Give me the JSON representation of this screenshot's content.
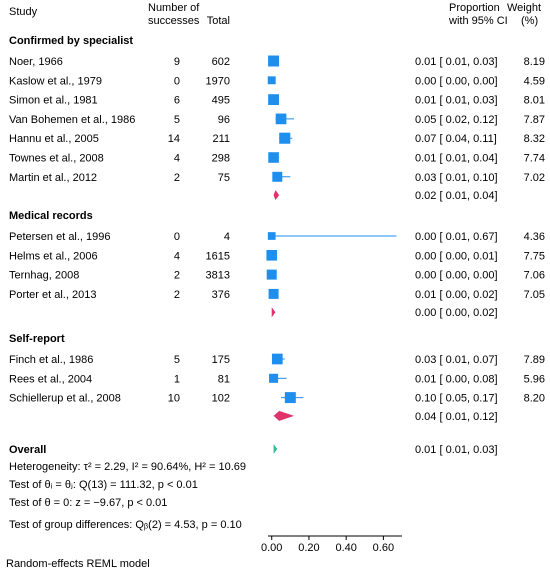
{
  "headers": {
    "study": "Study",
    "successes_line1": "Number of",
    "successes_line2": "successes",
    "total": "Total",
    "proportion_line1": "Proportion",
    "proportion_line2": "with 95% CI",
    "weight_line1": "Weight",
    "weight_line2": "(%)"
  },
  "footer": "Random-effects REML model",
  "colors": {
    "study": "#1e8fef",
    "subgroup": "#e0336b",
    "overall": "#2ec09a",
    "ci": "#1e8fef"
  },
  "groups": [
    {
      "name": "Confirmed by specialist",
      "studies": [
        {
          "study": "Noer, 1966",
          "successes": "9",
          "total": "602",
          "est": 0.01,
          "lo": 0.01,
          "hi": 0.03,
          "ci_text": "0.01 [ 0.01, 0.03]",
          "weight": "8.19"
        },
        {
          "study": "Kaslow et al., 1979",
          "successes": "0",
          "total": "1970",
          "est": 0.0,
          "lo": 0.0,
          "hi": 0.0,
          "ci_text": "0.00 [ 0.00, 0.00]",
          "weight": "4.59"
        },
        {
          "study": "Simon et al., 1981",
          "successes": "6",
          "total": "495",
          "est": 0.01,
          "lo": 0.01,
          "hi": 0.03,
          "ci_text": "0.01 [ 0.01, 0.03]",
          "weight": "8.01"
        },
        {
          "study": "Van Bohemen et al., 1986",
          "successes": "5",
          "total": "96",
          "est": 0.05,
          "lo": 0.02,
          "hi": 0.12,
          "ci_text": "0.05 [ 0.02, 0.12]",
          "weight": "7.87"
        },
        {
          "study": "Hannu et al., 2005",
          "successes": "14",
          "total": "211",
          "est": 0.07,
          "lo": 0.04,
          "hi": 0.11,
          "ci_text": "0.07 [ 0.04, 0.11]",
          "weight": "8.32"
        },
        {
          "study": "Townes et al., 2008",
          "successes": "4",
          "total": "298",
          "est": 0.01,
          "lo": 0.01,
          "hi": 0.04,
          "ci_text": "0.01 [ 0.01, 0.04]",
          "weight": "7.74"
        },
        {
          "study": "Martin et al., 2012",
          "successes": "2",
          "total": "75",
          "est": 0.03,
          "lo": 0.01,
          "hi": 0.1,
          "ci_text": "0.03 [ 0.01, 0.10]",
          "weight": "7.02"
        }
      ],
      "pooled": {
        "est": 0.02,
        "lo": 0.01,
        "hi": 0.04,
        "ci_text": "0.02 [ 0.01, 0.04]"
      }
    },
    {
      "name": "Medical records",
      "studies": [
        {
          "study": "Petersen et al., 1996",
          "successes": "0",
          "total": "4",
          "est": 0.0,
          "lo": 0.01,
          "hi": 0.67,
          "ci_text": "0.00 [ 0.01, 0.67]",
          "weight": "4.36"
        },
        {
          "study": "Helms et al., 2006",
          "successes": "4",
          "total": "1615",
          "est": 0.0,
          "lo": 0.0,
          "hi": 0.01,
          "ci_text": "0.00 [ 0.00, 0.01]",
          "weight": "7.75"
        },
        {
          "study": "Ternhag, 2008",
          "successes": "2",
          "total": "3813",
          "est": 0.0,
          "lo": 0.0,
          "hi": 0.0,
          "ci_text": "0.00 [ 0.00, 0.00]",
          "weight": "7.06"
        },
        {
          "study": "Porter et al., 2013",
          "successes": "2",
          "total": "376",
          "est": 0.01,
          "lo": 0.0,
          "hi": 0.02,
          "ci_text": "0.01 [ 0.00, 0.02]",
          "weight": "7.05"
        }
      ],
      "pooled": {
        "est": 0.0,
        "lo": 0.0,
        "hi": 0.02,
        "ci_text": "0.00 [ 0.00, 0.02]"
      }
    },
    {
      "name": "Self-report",
      "studies": [
        {
          "study": "Finch et al., 1986",
          "successes": "5",
          "total": "175",
          "est": 0.03,
          "lo": 0.01,
          "hi": 0.07,
          "ci_text": "0.03 [ 0.01, 0.07]",
          "weight": "7.89"
        },
        {
          "study": "Rees et al., 2004",
          "successes": "1",
          "total": "81",
          "est": 0.01,
          "lo": 0.0,
          "hi": 0.08,
          "ci_text": "0.01 [ 0.00, 0.08]",
          "weight": "5.96"
        },
        {
          "study": "Schiellerup et al., 2008",
          "successes": "10",
          "total": "102",
          "est": 0.1,
          "lo": 0.05,
          "hi": 0.17,
          "ci_text": "0.10 [ 0.05, 0.17]",
          "weight": "8.20"
        }
      ],
      "pooled": {
        "est": 0.04,
        "lo": 0.01,
        "hi": 0.12,
        "ci_text": "0.04 [ 0.01, 0.12]"
      }
    }
  ],
  "overall": {
    "label": "Overall",
    "est": 0.01,
    "lo": 0.01,
    "hi": 0.03,
    "ci_text": "0.01 [ 0.01, 0.03]"
  },
  "stats_lines": [
    "Heterogeneity: τ² = 2.29, I² = 90.64%, H² = 10.69",
    "Test of θᵢ = θⱼ: Q(13) = 111.32, p < 0.01",
    "Test of θ = 0: z = −9.67, p < 0.01",
    "Test of group differences: Qᵦ(2) = 4.53, p = 0.10"
  ],
  "chart_data": {
    "type": "forest",
    "xlim": [
      -0.02,
      0.7
    ],
    "xticks": [
      0.0,
      0.2,
      0.4,
      0.6
    ],
    "xtick_labels": [
      "0.00",
      "0.20",
      "0.40",
      "0.60"
    ]
  }
}
